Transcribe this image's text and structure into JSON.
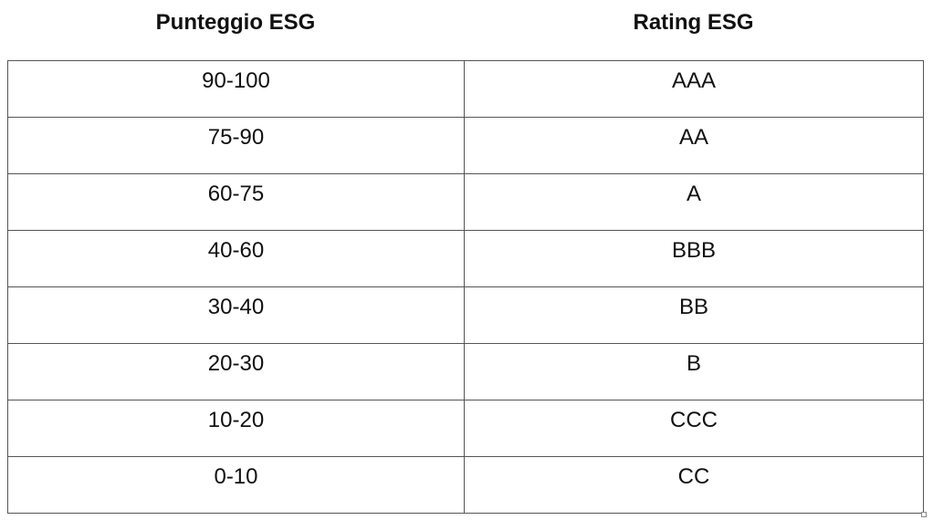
{
  "table": {
    "headers": [
      "Punteggio ESG",
      "Rating ESG"
    ],
    "rows": [
      {
        "score": "90-100",
        "rating": "AAA"
      },
      {
        "score": "75-90",
        "rating": "AA"
      },
      {
        "score": "60-75",
        "rating": "A"
      },
      {
        "score": "40-60",
        "rating": "BBB"
      },
      {
        "score": "30-40",
        "rating": "BB"
      },
      {
        "score": "20-30",
        "rating": "B"
      },
      {
        "score": "10-20",
        "rating": "CCC"
      },
      {
        "score": "0-10",
        "rating": "CC"
      }
    ]
  }
}
